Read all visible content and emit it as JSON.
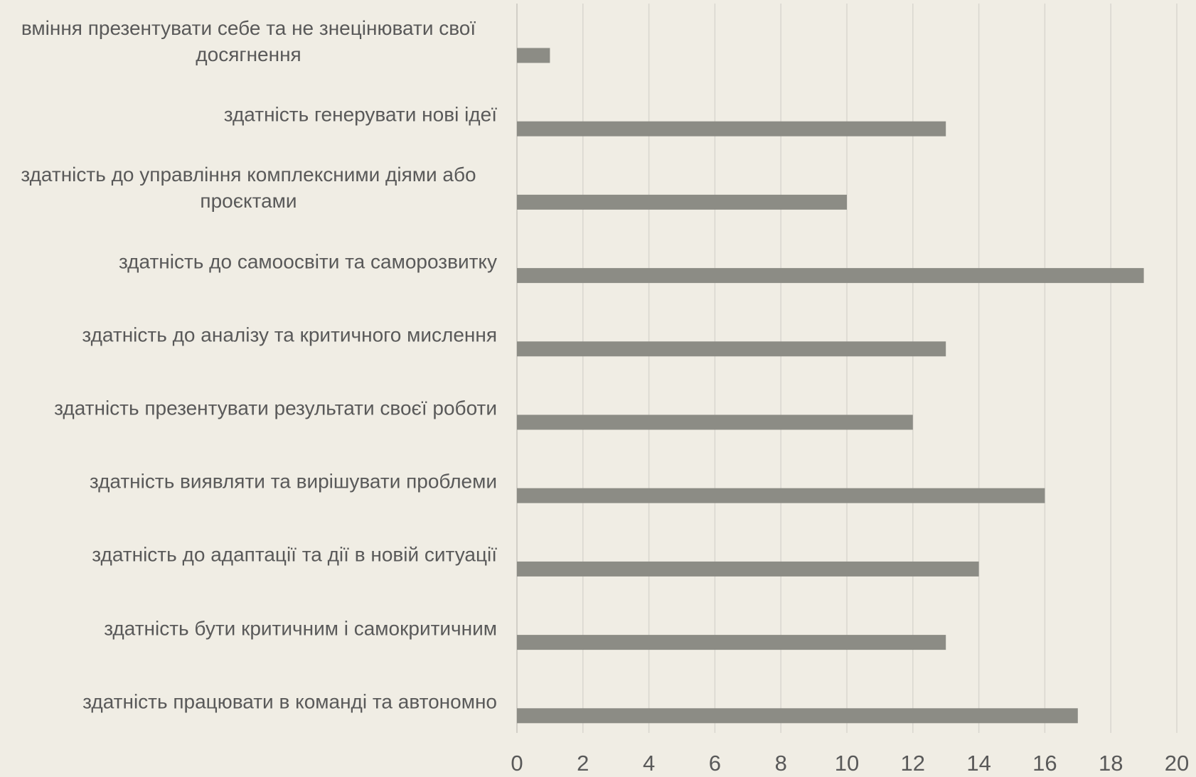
{
  "chart_data": {
    "type": "bar",
    "orientation": "horizontal",
    "categories": [
      "вміння презентувати себе та не знецінювати свої досягнення",
      "здатність генерувати нові ідеї",
      "здатність до управління комплексними діями або проєктами",
      "здатність до самоосвіти та саморозвитку",
      "здатність до аналізу та критичного мислення",
      "здатність презентувати результати своєї роботи",
      "здатність виявляти та вирішувати проблеми",
      "здатність до адаптації та дії в новій ситуації",
      "здатність бути критичним і самокритичним",
      "здатність працювати в команді та автономно"
    ],
    "values": [
      1,
      13,
      10,
      19,
      13,
      12,
      16,
      14,
      13,
      17
    ],
    "color": "#8c8c85",
    "xlim": [
      0,
      20
    ],
    "xticks": [
      0,
      2,
      4,
      6,
      8,
      10,
      12,
      14,
      16,
      18,
      20
    ],
    "grid": true
  }
}
